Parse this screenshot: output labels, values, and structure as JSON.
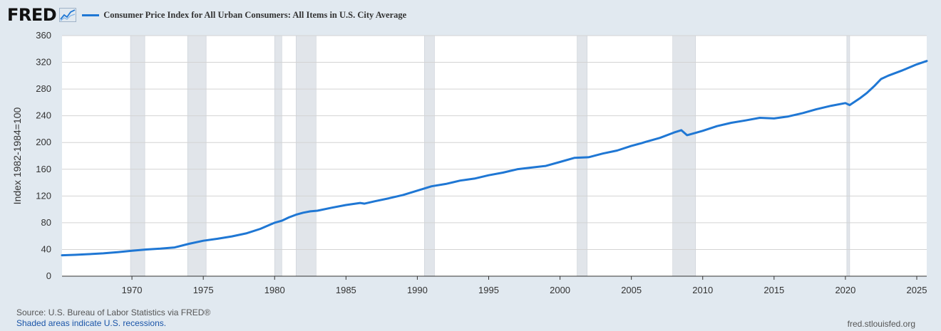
{
  "header": {
    "logo_text": "FRED",
    "logo_icon": "fred-graph-icon"
  },
  "footer": {
    "source": "Source: U.S. Bureau of Labor Statistics via FRED®",
    "recession_note": "Shaded areas indicate U.S. recessions.",
    "site": "fred.stlouisfed.org"
  },
  "colors": {
    "line": "#1f77d4",
    "recession": "#e1e5ea",
    "grid": "#d3d3d3",
    "background": "#e1e9f0",
    "plot_background": "#ffffff"
  },
  "chart_data": {
    "type": "line",
    "title": "",
    "xlabel": "",
    "ylabel": "Index 1982-1984=100",
    "xlim": [
      1965.1,
      2025.7
    ],
    "ylim": [
      0,
      360
    ],
    "yticks": [
      0,
      40,
      80,
      120,
      160,
      200,
      240,
      280,
      320,
      360
    ],
    "xticks": [
      1970,
      1975,
      1980,
      1985,
      1990,
      1995,
      2000,
      2005,
      2010,
      2015,
      2020,
      2025
    ],
    "grid": true,
    "legend_position": "top-left",
    "recessions": [
      [
        1969.9,
        1970.9
      ],
      [
        1973.9,
        1975.2
      ],
      [
        1980.0,
        1980.5
      ],
      [
        1981.5,
        1982.9
      ],
      [
        1990.5,
        1991.2
      ],
      [
        2001.2,
        2001.9
      ],
      [
        2007.9,
        2009.5
      ],
      [
        2020.1,
        2020.3
      ]
    ],
    "series": [
      {
        "name": "Consumer Price Index for All Urban Consumers: All Items in U.S. City Average",
        "x": [
          1965.1,
          1966,
          1967,
          1968,
          1969,
          1970,
          1971,
          1972,
          1973,
          1974,
          1975,
          1976,
          1977,
          1978,
          1979,
          1980,
          1980.5,
          1981,
          1981.5,
          1982,
          1982.5,
          1983,
          1984,
          1985,
          1986,
          1986.3,
          1987,
          1988,
          1989,
          1990,
          1991,
          1992,
          1993,
          1994,
          1995,
          1996,
          1997,
          1998,
          1999,
          2000,
          2001,
          2002,
          2003,
          2004,
          2005,
          2005.7,
          2006,
          2007,
          2008,
          2008.5,
          2008.9,
          2009,
          2010,
          2011,
          2012,
          2013,
          2014,
          2015,
          2016,
          2017,
          2018,
          2019,
          2020,
          2020.3,
          2021,
          2021.5,
          2022,
          2022.5,
          2023,
          2024,
          2025,
          2025.7
        ],
        "values": [
          31.3,
          32.0,
          33.0,
          34.2,
          35.9,
          38.0,
          39.9,
          41.2,
          43.0,
          48.5,
          53.0,
          56.0,
          59.5,
          64.0,
          70.8,
          80.0,
          83.0,
          88.0,
          92.0,
          95.0,
          97.0,
          98.0,
          102.5,
          106.5,
          109.6,
          108.5,
          112.0,
          116.5,
          121.5,
          128.0,
          134.5,
          138.0,
          143.0,
          146.0,
          151.0,
          155.0,
          160.0,
          162.5,
          165.0,
          171.0,
          177.0,
          178.0,
          183.5,
          188.0,
          195.0,
          199.0,
          201.0,
          207.0,
          215.0,
          218.5,
          211.0,
          211.5,
          217.5,
          224.5,
          229.5,
          233.0,
          237.0,
          236.0,
          239.0,
          244.0,
          250.0,
          255.0,
          259.0,
          256.0,
          266.0,
          274.0,
          284.0,
          295.0,
          300.0,
          308.0,
          317.0,
          322.0
        ]
      }
    ]
  }
}
